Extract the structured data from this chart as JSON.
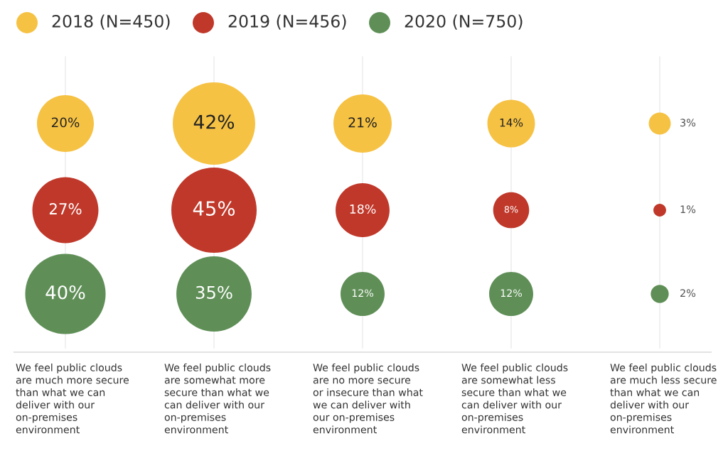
{
  "chart_data": {
    "type": "other",
    "categories": [
      "We feel public clouds\nare much more secure\nthan what we can\ndeliver with our\non-premises\nenvironment",
      "We feel public clouds\nare somewhat more\nsecure than what we\ncan deliver with our\non-premises\nenvironment",
      "We feel public clouds\nare no more secure\nor insecure than what\nwe can deliver with\nour on-premises\nenvironment",
      "We feel public clouds\nare somewhat less\nsecure than what we\ncan deliver with our\non-premises\nenvironment",
      "We feel public clouds\nare much less secure\nthan what we can\ndeliver with our\non-premises\nenvironment"
    ],
    "series": [
      {
        "name": "2018 (N=450)",
        "color": "#f6c244",
        "values": [
          20,
          42,
          21,
          14,
          3
        ],
        "value_labels": [
          "20%",
          "42%",
          "21%",
          "14%",
          "3%"
        ]
      },
      {
        "name": "2019 (N=456)",
        "color": "#c0382a",
        "values": [
          27,
          45,
          18,
          8,
          1
        ],
        "value_labels": [
          "27%",
          "45%",
          "18%",
          "8%",
          "1%"
        ]
      },
      {
        "name": "2020 (N=750)",
        "color": "#5f8f57",
        "values": [
          40,
          35,
          12,
          12,
          2
        ],
        "value_labels": [
          "40%",
          "35%",
          "12%",
          "12%",
          "2%"
        ]
      }
    ],
    "legend": "top left"
  }
}
